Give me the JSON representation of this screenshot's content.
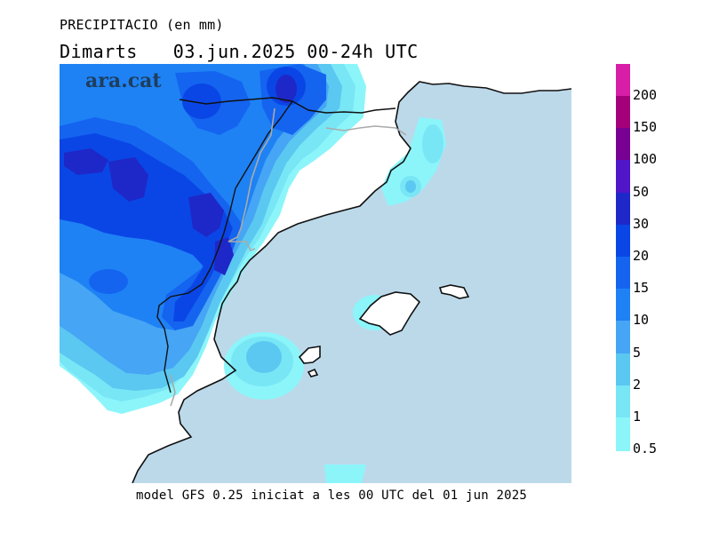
{
  "header": {
    "variable_label": "PRECIPITACIO (en mm)",
    "day_label": "Dimarts",
    "date_label": "03.jun.2025 00-24h UTC"
  },
  "brand": {
    "logo_text": "ara.cat"
  },
  "footer": {
    "model_label": "model GFS 0.25 iniciat a les 00 UTC del 01 jun 2025"
  },
  "legend": {
    "unit": "mm",
    "levels": [
      {
        "label": "200",
        "color": "#d61fa6"
      },
      {
        "label": "150",
        "color": "#a4007a"
      },
      {
        "label": "100",
        "color": "#780093"
      },
      {
        "label": "50",
        "color": "#5016c8"
      },
      {
        "label": "30",
        "color": "#1e28c8"
      },
      {
        "label": "20",
        "color": "#0a46e6"
      },
      {
        "label": "15",
        "color": "#1464f0"
      },
      {
        "label": "10",
        "color": "#1e82f5"
      },
      {
        "label": "5",
        "color": "#46a5f5"
      },
      {
        "label": "2",
        "color": "#5ac8f0"
      },
      {
        "label": "1",
        "color": "#78e6f5"
      },
      {
        "label": "0.5",
        "color": "#8cf5fa"
      }
    ]
  },
  "map": {
    "sea_color": "#bcd9ea",
    "land_color": "#ffffff",
    "border_color": "#aaaaaa",
    "coast_color": "#111111"
  }
}
